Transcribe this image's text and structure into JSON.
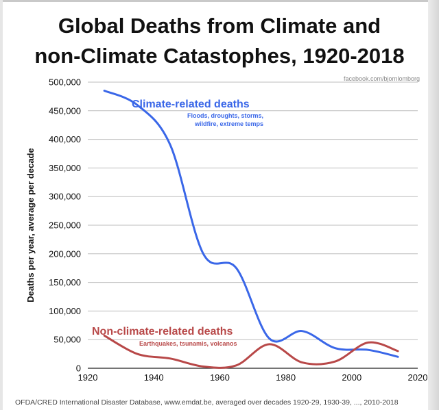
{
  "chart_data": {
    "type": "line",
    "title_line1": "Global Deaths from Climate and",
    "title_line2": "non-Climate Catastophes, 1920-2018",
    "source_credit": "facebook.com/bjornlomborg",
    "footnote": "OFDA/CRED International Disaster Database, www.emdat.be, averaged over decades 1920-29, 1930-39, ..., 2010-2018",
    "ylabel": "Deaths per year, average per decade",
    "xlabel": "",
    "xlim": [
      1920,
      2020
    ],
    "ylim": [
      0,
      500000
    ],
    "x_ticks": [
      "1920",
      "1940",
      "1960",
      "1980",
      "2000",
      "2020"
    ],
    "y_ticks": [
      "0",
      "50,000",
      "100,000",
      "150,000",
      "200,000",
      "250,000",
      "300,000",
      "350,000",
      "400,000",
      "450,000",
      "500,000"
    ],
    "grid": "horizontal",
    "x": [
      1925,
      1935,
      1945,
      1955,
      1965,
      1975,
      1985,
      1995,
      2005,
      2014
    ],
    "series": [
      {
        "name": "Climate-related deaths",
        "annotation": "Floods, droughts, storms, wildfire, extreme temps",
        "color": "#3a67e8",
        "values": [
          485000,
          460000,
          390000,
          200000,
          175000,
          52000,
          65000,
          35000,
          32000,
          20000
        ]
      },
      {
        "name": "Non-climate-related deaths",
        "annotation": "Earthquakes, tsunamis, volcanos",
        "color": "#b84848",
        "values": [
          57000,
          25000,
          17000,
          3000,
          5000,
          42000,
          10000,
          12000,
          45000,
          30000
        ]
      }
    ]
  }
}
